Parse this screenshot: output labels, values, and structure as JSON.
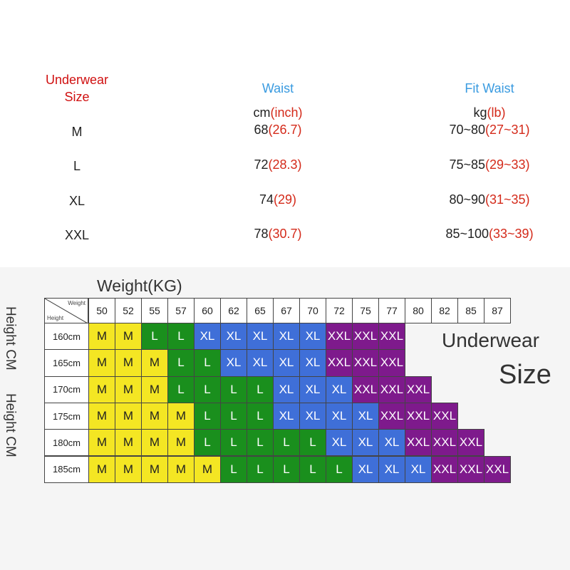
{
  "info_table": {
    "header": {
      "size_line1": "Underwear",
      "size_line2": "Size",
      "waist": "Waist",
      "fit_waist": "Fit Waist"
    },
    "units": {
      "waist_unit_main": "cm",
      "waist_unit_alt": "(inch)",
      "fit_unit_main": "kg",
      "fit_unit_alt": "(lb)"
    },
    "rows": [
      {
        "size": "M",
        "waist_cm": "68",
        "waist_inch": "(26.7)",
        "fit_kg": "70~80",
        "fit_lb": "(27~31)"
      },
      {
        "size": "L",
        "waist_cm": "72",
        "waist_inch": "(28.3)",
        "fit_kg": "75~85",
        "fit_lb": "(29~33)"
      },
      {
        "size": "XL",
        "waist_cm": "74",
        "waist_inch": "(29)",
        "fit_kg": "80~90",
        "fit_lb": "(31~35)"
      },
      {
        "size": "XXL",
        "waist_cm": "78",
        "waist_inch": "(30.7)",
        "fit_kg": "85~100",
        "fit_lb": "(33~39)"
      }
    ]
  },
  "size_chart": {
    "title": "Weight(KG)",
    "side_label_1": "Height CM",
    "side_label_2": "Height CM",
    "corner_weight": "Weight",
    "corner_height": "Height",
    "legend_line1": "Underwear",
    "legend_line2": "Size",
    "weights": [
      "50",
      "52",
      "55",
      "57",
      "60",
      "62",
      "65",
      "67",
      "70",
      "72",
      "75",
      "77",
      "80",
      "82",
      "85",
      "87"
    ],
    "rows": [
      {
        "height": "160cm",
        "sizes": [
          "M",
          "M",
          "L",
          "L",
          "XL",
          "XL",
          "XL",
          "XL",
          "XL",
          "XXL",
          "XXL",
          "XXL",
          "",
          "",
          "",
          ""
        ]
      },
      {
        "height": "165cm",
        "sizes": [
          "M",
          "M",
          "M",
          "L",
          "L",
          "XL",
          "XL",
          "XL",
          "XL",
          "XXL",
          "XXL",
          "XXL",
          "",
          "",
          "",
          ""
        ]
      },
      {
        "height": "170cm",
        "sizes": [
          "M",
          "M",
          "M",
          "L",
          "L",
          "L",
          "L",
          "XL",
          "XL",
          "XL",
          "XXL",
          "XXL",
          "XXL",
          "",
          "",
          ""
        ]
      },
      {
        "height": "175cm",
        "sizes": [
          "M",
          "M",
          "M",
          "M",
          "L",
          "L",
          "L",
          "XL",
          "XL",
          "XL",
          "XL",
          "XXL",
          "XXL",
          "XXL",
          "",
          ""
        ]
      },
      {
        "height": "180cm",
        "sizes": [
          "M",
          "M",
          "M",
          "M",
          "L",
          "L",
          "L",
          "L",
          "L",
          "XL",
          "XL",
          "XL",
          "XXL",
          "XXL",
          "XXL",
          ""
        ]
      },
      {
        "height": "185cm",
        "sizes": [
          "M",
          "M",
          "M",
          "M",
          "M",
          "L",
          "L",
          "L",
          "L",
          "L",
          "XL",
          "XL",
          "XL",
          "XXL",
          "XXL",
          "XXL"
        ]
      }
    ],
    "colors": {
      "M": "#f4e623",
      "L": "#1a8f1d",
      "XL": "#3f6fd8",
      "XXL": "#7e1a8c"
    }
  }
}
